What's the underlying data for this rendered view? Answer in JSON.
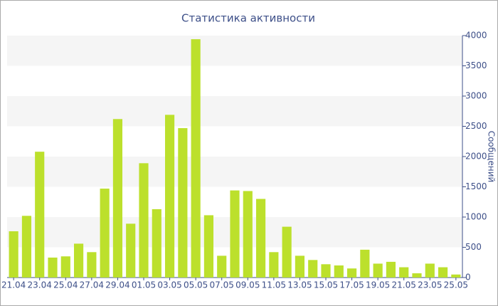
{
  "chart_data": {
    "type": "bar",
    "title": "Статистика активности",
    "y_label": "Сообщений",
    "categories": [
      "21.04",
      null,
      "23.04",
      null,
      "25.04",
      null,
      "27.04",
      null,
      "29.04",
      null,
      "01.05",
      null,
      "03.05",
      null,
      "05.05",
      null,
      "07.05",
      null,
      "09.05",
      null,
      "11.05",
      null,
      "13.05",
      null,
      "15.05",
      null,
      "17.05",
      null,
      "19.05",
      null,
      "21.05",
      null,
      "23.05",
      null,
      "25.05"
    ],
    "values": [
      765,
      1020,
      2080,
      330,
      350,
      560,
      420,
      1470,
      2620,
      890,
      1890,
      1130,
      2690,
      2470,
      3940,
      1030,
      360,
      1440,
      1430,
      1300,
      420,
      840,
      360,
      290,
      220,
      200,
      150,
      460,
      230,
      260,
      170,
      70,
      230,
      170,
      50
    ],
    "color": "#bce02c",
    "ylim": [
      0,
      4000
    ],
    "yticks": [
      0,
      500,
      1000,
      1500,
      2000,
      2500,
      3000,
      3500,
      4000
    ],
    "grid": true
  }
}
